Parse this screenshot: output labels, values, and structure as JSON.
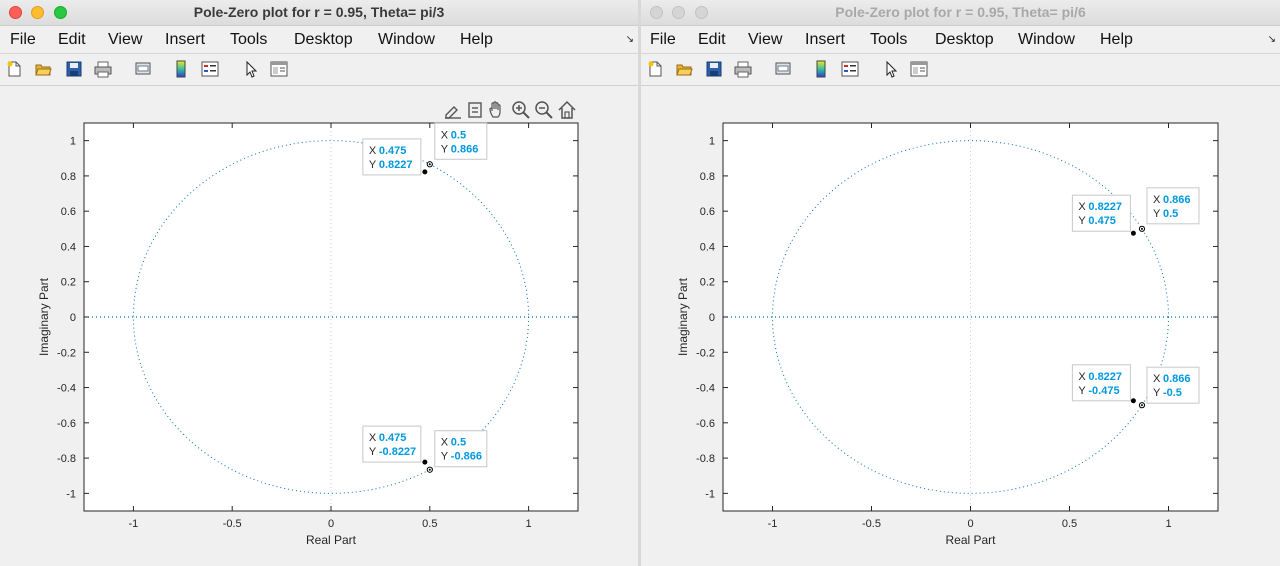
{
  "windows": {
    "left": {
      "title": "Pole-Zero plot for r = 0.95, Theta= pi/3",
      "active": true,
      "menu": [
        "File",
        "Edit",
        "View",
        "Insert",
        "Tools",
        "Desktop",
        "Window",
        "Help"
      ],
      "xlabel": "Real Part",
      "ylabel": "Imaginary Part",
      "datatips": [
        {
          "x_label": "X",
          "x_value": "0.475",
          "y_label": "Y",
          "y_value": "0.8227"
        },
        {
          "x_label": "X",
          "x_value": "0.5",
          "y_label": "Y",
          "y_value": "0.866"
        },
        {
          "x_label": "X",
          "x_value": "0.475",
          "y_label": "Y",
          "y_value": "-0.8227"
        },
        {
          "x_label": "X",
          "x_value": "0.5",
          "y_label": "Y",
          "y_value": "-0.866"
        }
      ]
    },
    "right": {
      "title": "Pole-Zero plot for r = 0.95, Theta= pi/6",
      "active": false,
      "menu": [
        "File",
        "Edit",
        "View",
        "Insert",
        "Tools",
        "Desktop",
        "Window",
        "Help"
      ],
      "xlabel": "Real Part",
      "ylabel": "Imaginary Part",
      "datatips": [
        {
          "x_label": "X",
          "x_value": "0.8227",
          "y_label": "Y",
          "y_value": "0.475"
        },
        {
          "x_label": "X",
          "x_value": "0.866",
          "y_label": "Y",
          "y_value": "0.5"
        },
        {
          "x_label": "X",
          "x_value": "0.8227",
          "y_label": "Y",
          "y_value": "-0.475"
        },
        {
          "x_label": "X",
          "x_value": "0.866",
          "y_label": "Y",
          "y_value": "-0.5"
        }
      ]
    }
  },
  "toolbar_icons": [
    "new-figure-icon",
    "open-file-icon",
    "save-icon",
    "print-icon",
    "link-plot-icon",
    "colorbar-icon",
    "legend-icon",
    "edit-plot-arrow-icon",
    "property-inspector-icon"
  ],
  "axes_toolbar_icons": [
    "brush-icon",
    "datatip-icon",
    "pan-hand-icon",
    "zoom-in-icon",
    "zoom-out-icon",
    "restore-view-icon"
  ],
  "chart_data": [
    {
      "type": "scatter",
      "title": "",
      "xlabel": "Real Part",
      "ylabel": "Imaginary Part",
      "xlim": [
        -1.25,
        1.25
      ],
      "ylim": [
        -1.1,
        1.1
      ],
      "xticks": [
        -1,
        -0.5,
        0,
        0.5,
        1
      ],
      "xtick_labels": [
        "-1",
        "-0.5",
        "0",
        "0.5",
        "1"
      ],
      "yticks": [
        1,
        0.8,
        0.6,
        0.4,
        0.2,
        0,
        -0.2,
        -0.4,
        -0.6,
        -0.8,
        -1
      ],
      "ytick_labels": [
        "1",
        "0.8",
        "0.6",
        "0.4",
        "0.2",
        "0",
        "-0.2",
        "-0.4",
        "-0.6",
        "-0.8",
        "-1"
      ],
      "unit_circle": true,
      "series": [
        {
          "name": "",
          "x": [
            0.475,
            0.475
          ],
          "y": [
            0.8227,
            -0.8227
          ]
        },
        {
          "name": "",
          "x": [
            0.5,
            0.5
          ],
          "y": [
            0.866,
            -0.866
          ]
        }
      ],
      "datatip_offsets": [
        [
          -62,
          -33
        ],
        [
          5,
          -41
        ],
        [
          -62,
          -36
        ],
        [
          5,
          -39
        ]
      ],
      "colors": {
        "circle": "#0072bd",
        "axis": "#0072bd",
        "marker": "#000000",
        "tip_value": "#0099e0"
      }
    },
    {
      "type": "scatter",
      "title": "",
      "xlabel": "Real Part",
      "ylabel": "Imaginary Part",
      "xlim": [
        -1.25,
        1.25
      ],
      "ylim": [
        -1.1,
        1.1
      ],
      "xticks": [
        -1,
        -0.5,
        0,
        0.5,
        1
      ],
      "xtick_labels": [
        "-1",
        "-0.5",
        "0",
        "0.5",
        "1"
      ],
      "yticks": [
        1,
        0.8,
        0.6,
        0.4,
        0.2,
        0,
        -0.2,
        -0.4,
        -0.6,
        -0.8,
        -1
      ],
      "ytick_labels": [
        "1",
        "0.8",
        "0.6",
        "0.4",
        "0.2",
        "0",
        "-0.2",
        "-0.4",
        "-0.6",
        "-0.8",
        "-1"
      ],
      "unit_circle": true,
      "series": [
        {
          "name": "",
          "x": [
            0.8227,
            0.8227
          ],
          "y": [
            0.475,
            -0.475
          ]
        },
        {
          "name": "",
          "x": [
            0.866,
            0.866
          ],
          "y": [
            0.5,
            -0.5
          ]
        }
      ],
      "datatip_offsets": [
        [
          -61,
          -38
        ],
        [
          5,
          -41
        ],
        [
          -61,
          -36
        ],
        [
          5,
          -38
        ]
      ],
      "colors": {
        "circle": "#0072bd",
        "axis": "#0072bd",
        "marker": "#000000",
        "tip_value": "#0099e0"
      }
    }
  ]
}
